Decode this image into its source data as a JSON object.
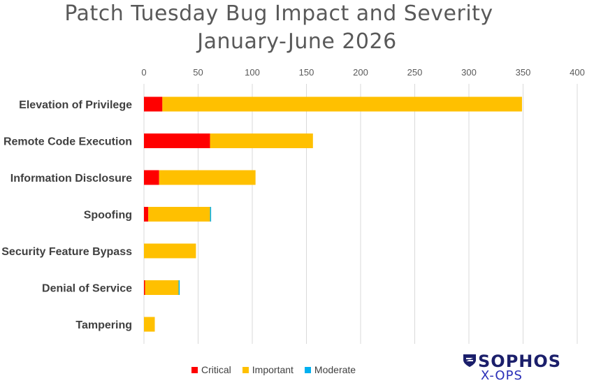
{
  "chart_data": {
    "type": "bar",
    "orientation": "horizontal",
    "stacked": true,
    "title_line1": "Patch Tuesday Bug Impact and Severity",
    "title_line2": "January-June 2026",
    "categories": [
      "Elevation of Privilege",
      "Remote Code Execution",
      "Information Disclosure",
      "Spoofing",
      "Security Feature Bypass",
      "Denial of Service",
      "Tampering"
    ],
    "series": [
      {
        "name": "Critical",
        "color": "#ff0000",
        "values": [
          17,
          61,
          14,
          4,
          0,
          1,
          0
        ]
      },
      {
        "name": "Important",
        "color": "#ffc000",
        "values": [
          332,
          95,
          89,
          57,
          48,
          31,
          10
        ]
      },
      {
        "name": "Moderate",
        "color": "#00b0f0",
        "values": [
          0,
          0,
          0,
          1,
          0,
          1,
          0
        ]
      }
    ],
    "xlim": [
      0,
      400
    ],
    "x_ticks": [
      "0",
      "50",
      "100",
      "150",
      "200",
      "250",
      "300",
      "350",
      "400"
    ],
    "x_axis_position": "top",
    "grid": true,
    "legend_position": "bottom"
  },
  "logo": {
    "wordmark": "SOPHOS",
    "subtitle": "X-OPS"
  }
}
